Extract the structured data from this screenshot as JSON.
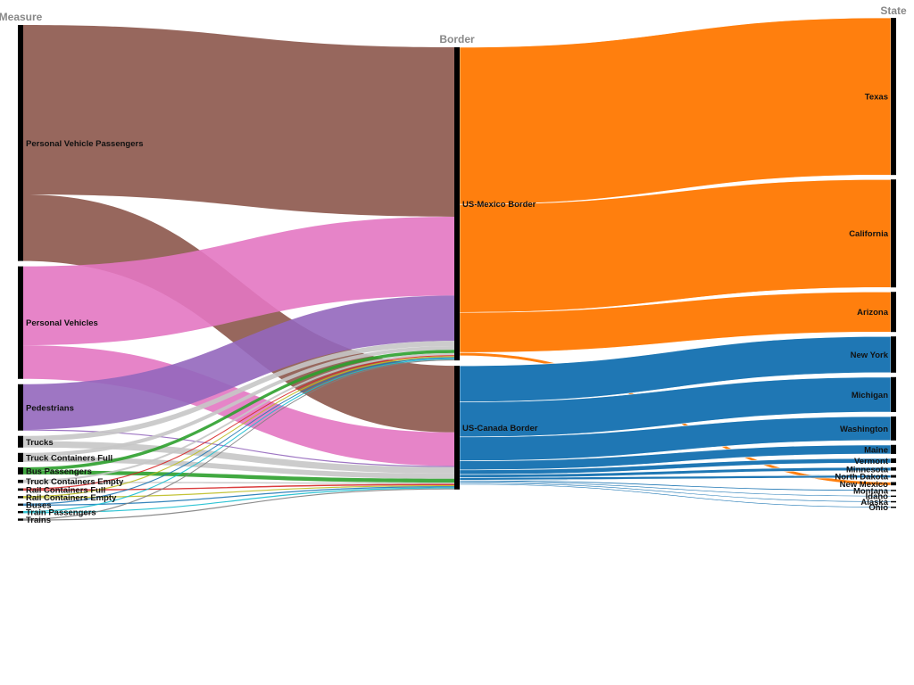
{
  "chart_data": {
    "type": "sankey",
    "axis_titles": {
      "measure": "Measure",
      "border": "Border",
      "state": "State"
    },
    "measures": [
      {
        "name": "Personal Vehicle Passengers",
        "color": "#8c564b"
      },
      {
        "name": "Personal Vehicles",
        "color": "#e377c2"
      },
      {
        "name": "Pedestrians",
        "color": "#9467bd"
      },
      {
        "name": "Trucks",
        "color": "#c7c7c7"
      },
      {
        "name": "Truck Containers Full",
        "color": "#c7c7c7"
      },
      {
        "name": "Bus Passengers",
        "color": "#2ca02c"
      },
      {
        "name": "Truck Containers Empty",
        "color": "#c7c7c7"
      },
      {
        "name": "Rail Containers Full",
        "color": "#d62728"
      },
      {
        "name": "Rail Containers Empty",
        "color": "#bcbd22"
      },
      {
        "name": "Buses",
        "color": "#1f77b4"
      },
      {
        "name": "Train Passengers",
        "color": "#17becf"
      },
      {
        "name": "Trains",
        "color": "#7f7f7f"
      }
    ],
    "borders": [
      {
        "name": "US-Mexico Border",
        "color": "#ff7f0e"
      },
      {
        "name": "US-Canada Border",
        "color": "#1f77b4"
      }
    ],
    "states": [
      {
        "name": "Texas",
        "border": "US-Mexico Border"
      },
      {
        "name": "California",
        "border": "US-Mexico Border"
      },
      {
        "name": "Arizona",
        "border": "US-Mexico Border"
      },
      {
        "name": "New York",
        "border": "US-Canada Border"
      },
      {
        "name": "Michigan",
        "border": "US-Canada Border"
      },
      {
        "name": "Washington",
        "border": "US-Canada Border"
      },
      {
        "name": "Maine",
        "border": "US-Canada Border"
      },
      {
        "name": "Vermont",
        "border": "US-Canada Border"
      },
      {
        "name": "Minnesota",
        "border": "US-Canada Border"
      },
      {
        "name": "North Dakota",
        "border": "US-Canada Border"
      },
      {
        "name": "New Mexico",
        "border": "US-Mexico Border"
      },
      {
        "name": "Montana",
        "border": "US-Canada Border"
      },
      {
        "name": "Idaho",
        "border": "US-Canada Border"
      },
      {
        "name": "Alaska",
        "border": "US-Canada Border"
      },
      {
        "name": "Ohio",
        "border": "US-Canada Border"
      }
    ],
    "links_measure_to_border": [
      {
        "source": "Personal Vehicle Passengers",
        "target": "US-Mexico Border",
        "value": 262
      },
      {
        "source": "Personal Vehicle Passengers",
        "target": "US-Canada Border",
        "value": 103
      },
      {
        "source": "Personal Vehicles",
        "target": "US-Mexico Border",
        "value": 122
      },
      {
        "source": "Personal Vehicles",
        "target": "US-Canada Border",
        "value": 52
      },
      {
        "source": "Pedestrians",
        "target": "US-Mexico Border",
        "value": 70
      },
      {
        "source": "Pedestrians",
        "target": "US-Canada Border",
        "value": 1
      },
      {
        "source": "Trucks",
        "target": "US-Mexico Border",
        "value": 8
      },
      {
        "source": "Trucks",
        "target": "US-Canada Border",
        "value": 10
      },
      {
        "source": "Truck Containers Full",
        "target": "US-Mexico Border",
        "value": 6
      },
      {
        "source": "Truck Containers Full",
        "target": "US-Canada Border",
        "value": 8
      },
      {
        "source": "Bus Passengers",
        "target": "US-Mexico Border",
        "value": 5
      },
      {
        "source": "Bus Passengers",
        "target": "US-Canada Border",
        "value": 6
      },
      {
        "source": "Truck Containers Empty",
        "target": "US-Mexico Border",
        "value": 3
      },
      {
        "source": "Truck Containers Empty",
        "target": "US-Canada Border",
        "value": 2
      },
      {
        "source": "Rail Containers Full",
        "target": "US-Mexico Border",
        "value": 1
      },
      {
        "source": "Rail Containers Full",
        "target": "US-Canada Border",
        "value": 2
      },
      {
        "source": "Rail Containers Empty",
        "target": "US-Mexico Border",
        "value": 1
      },
      {
        "source": "Rail Containers Empty",
        "target": "US-Canada Border",
        "value": 1
      },
      {
        "source": "Buses",
        "target": "US-Mexico Border",
        "value": 0.5
      },
      {
        "source": "Buses",
        "target": "US-Canada Border",
        "value": 0.5
      },
      {
        "source": "Train Passengers",
        "target": "US-Mexico Border",
        "value": 0.3
      },
      {
        "source": "Train Passengers",
        "target": "US-Canada Border",
        "value": 0.5
      },
      {
        "source": "Trains",
        "target": "US-Mexico Border",
        "value": 0.2
      },
      {
        "source": "Trains",
        "target": "US-Canada Border",
        "value": 0.3
      }
    ],
    "links_border_to_state": [
      {
        "source": "US-Mexico Border",
        "target": "Texas",
        "value": 243
      },
      {
        "source": "US-Mexico Border",
        "target": "California",
        "value": 167
      },
      {
        "source": "US-Mexico Border",
        "target": "Arizona",
        "value": 62
      },
      {
        "source": "US-Mexico Border",
        "target": "New Mexico",
        "value": 5
      },
      {
        "source": "US-Canada Border",
        "target": "New York",
        "value": 56
      },
      {
        "source": "US-Canada Border",
        "target": "Michigan",
        "value": 54
      },
      {
        "source": "US-Canada Border",
        "target": "Washington",
        "value": 37
      },
      {
        "source": "US-Canada Border",
        "target": "Maine",
        "value": 14
      },
      {
        "source": "US-Canada Border",
        "target": "Vermont",
        "value": 7
      },
      {
        "source": "US-Canada Border",
        "target": "Minnesota",
        "value": 5
      },
      {
        "source": "US-Canada Border",
        "target": "North Dakota",
        "value": 4
      },
      {
        "source": "US-Canada Border",
        "target": "Montana",
        "value": 2
      },
      {
        "source": "US-Canada Border",
        "target": "Idaho",
        "value": 1.5
      },
      {
        "source": "US-Canada Border",
        "target": "Alaska",
        "value": 1
      },
      {
        "source": "US-Canada Border",
        "target": "Ohio",
        "value": 0.5
      }
    ]
  }
}
